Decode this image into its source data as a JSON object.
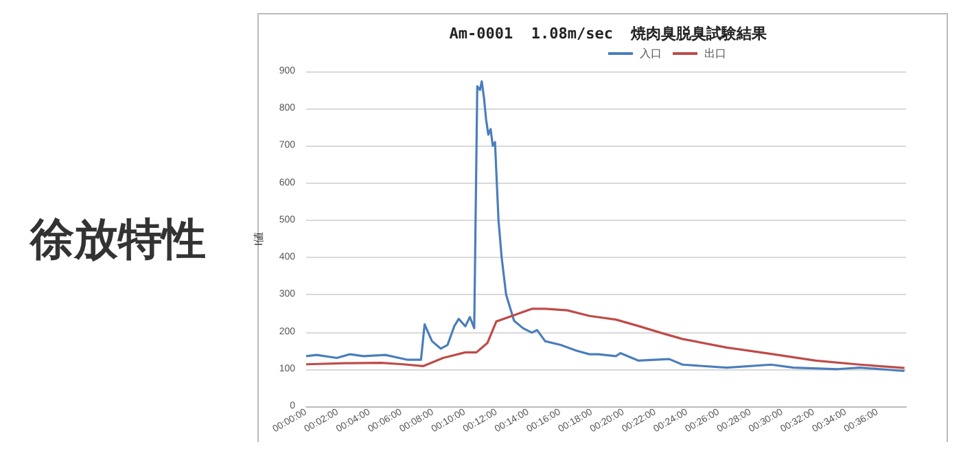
{
  "chart_data": {
    "type": "line",
    "title": "Am-0001  1.08m/sec  焼肉臭脱臭試験結果",
    "ylabel": "I値",
    "annotations": [
      "徐放特性"
    ],
    "xlim": [
      0,
      0.63
    ],
    "ylim": [
      0,
      900
    ],
    "yticks": [
      0,
      100,
      200,
      300,
      400,
      500,
      600,
      700,
      800,
      900
    ],
    "xticks": [
      {
        "value": 0,
        "label": "00:00:00"
      },
      {
        "value": 0.0333,
        "label": "00:02:00"
      },
      {
        "value": 0.0667,
        "label": "00:04:00"
      },
      {
        "value": 0.1,
        "label": "00:06:00"
      },
      {
        "value": 0.1333,
        "label": "00:08:00"
      },
      {
        "value": 0.1667,
        "label": "00:10:00"
      },
      {
        "value": 0.2,
        "label": "00:12:00"
      },
      {
        "value": 0.2333,
        "label": "00:14:00"
      },
      {
        "value": 0.2667,
        "label": "00:16:00"
      },
      {
        "value": 0.3,
        "label": "00:18:00"
      },
      {
        "value": 0.3333,
        "label": "00:20:00"
      },
      {
        "value": 0.3667,
        "label": "00:22:00"
      },
      {
        "value": 0.4,
        "label": "00:24:00"
      },
      {
        "value": 0.4333,
        "label": "00:26:00"
      },
      {
        "value": 0.4667,
        "label": "00:28:00"
      },
      {
        "value": 0.5,
        "label": "00:30:00"
      },
      {
        "value": 0.5333,
        "label": "00:32:00"
      },
      {
        "value": 0.5667,
        "label": "00:34:00"
      },
      {
        "value": 0.6,
        "label": "00:36:00"
      }
    ],
    "grid": "y",
    "legend": "top",
    "marker": "none",
    "line_style": "solid",
    "series": [
      {
        "name": "入口",
        "color": "#4a7ebb",
        "x": [
          0,
          0.0111,
          0.0322,
          0.0461,
          0.06,
          0.0833,
          0.1067,
          0.1206,
          0.1244,
          0.1322,
          0.1414,
          0.1485,
          0.1555,
          0.1602,
          0.1672,
          0.1719,
          0.1765,
          0.1797,
          0.1825,
          0.1844,
          0.1867,
          0.189,
          0.1913,
          0.1937,
          0.196,
          0.1983,
          0.202,
          0.2053,
          0.21,
          0.2183,
          0.2277,
          0.237,
          0.2425,
          0.251,
          0.2672,
          0.2835,
          0.2975,
          0.3067,
          0.3253,
          0.33,
          0.3487,
          0.3812,
          0.3952,
          0.4417,
          0.4883,
          0.5117,
          0.5583,
          0.5817,
          0.6283
        ],
        "values": [
          135,
          138,
          130,
          140,
          135,
          138,
          125,
          125,
          220,
          175,
          155,
          165,
          215,
          235,
          215,
          240,
          210,
          860,
          850,
          873,
          830,
          770,
          730,
          745,
          700,
          710,
          500,
          400,
          300,
          230,
          210,
          198,
          205,
          175,
          165,
          150,
          140,
          140,
          135,
          143,
          123,
          127,
          112,
          104,
          112,
          104,
          100,
          104,
          95
        ]
      },
      {
        "name": "出口",
        "color": "#be4b48",
        "x": [
          0,
          0.0415,
          0.0787,
          0.102,
          0.1228,
          0.1438,
          0.1672,
          0.1788,
          0.1903,
          0.1997,
          0.2183,
          0.237,
          0.251,
          0.2742,
          0.2975,
          0.3253,
          0.3487,
          0.3718,
          0.3952,
          0.4417,
          0.4883,
          0.535,
          0.5817,
          0.6283
        ],
        "values": [
          113,
          116,
          117,
          113,
          108,
          130,
          145,
          145,
          170,
          228,
          245,
          262,
          262,
          258,
          243,
          233,
          216,
          198,
          181,
          158,
          141,
          123,
          112,
          103
        ]
      }
    ]
  }
}
